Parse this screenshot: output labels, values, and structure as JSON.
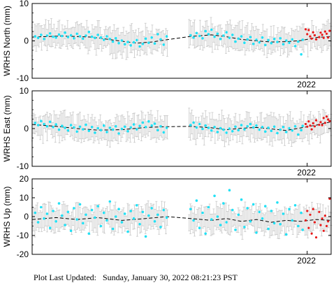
{
  "footer": {
    "label": "Plot Last Updated:",
    "value": "Sunday, January 30, 2022 08:21:23 PST"
  },
  "colors": {
    "points": "#22e1f5",
    "recent_points": "#e81b1b",
    "error_bars": "#c8c8c8",
    "trend": "#000000"
  },
  "chart_data": [
    {
      "type": "scatter",
      "ylabel": "WRHS North (mm)",
      "ylim": [
        -10,
        10
      ],
      "yticks": [
        "10",
        "0",
        "-10"
      ],
      "x_tick_label": "2022",
      "points_cyan": [
        [
          0.01,
          1.2
        ],
        [
          0.02,
          0.8
        ],
        [
          0.03,
          1.6
        ],
        [
          0.04,
          0.5
        ],
        [
          0.05,
          1.4
        ],
        [
          0.06,
          2.0
        ],
        [
          0.07,
          1.1
        ],
        [
          0.08,
          0.9
        ],
        [
          0.09,
          1.7
        ],
        [
          0.1,
          1.3
        ],
        [
          0.11,
          2.2
        ],
        [
          0.12,
          1.0
        ],
        [
          0.13,
          1.5
        ],
        [
          0.14,
          0.7
        ],
        [
          0.15,
          1.9
        ],
        [
          0.16,
          1.2
        ],
        [
          0.17,
          0.6
        ],
        [
          0.18,
          1.4
        ],
        [
          0.19,
          2.4
        ],
        [
          0.2,
          1.1
        ],
        [
          0.21,
          0.8
        ],
        [
          0.22,
          1.6
        ],
        [
          0.23,
          0.9
        ],
        [
          0.24,
          0.3
        ],
        [
          0.25,
          1.2
        ],
        [
          0.26,
          0.5
        ],
        [
          0.27,
          -0.2
        ],
        [
          0.28,
          0.7
        ],
        [
          0.29,
          -0.6
        ],
        [
          0.3,
          0.1
        ],
        [
          0.31,
          -0.9
        ],
        [
          0.32,
          -0.3
        ],
        [
          0.33,
          -1.2
        ],
        [
          0.34,
          -0.4
        ],
        [
          0.35,
          0.2
        ],
        [
          0.36,
          -1.5
        ],
        [
          0.37,
          -0.8
        ],
        [
          0.38,
          0.6
        ],
        [
          0.39,
          -0.5
        ],
        [
          0.4,
          0.9
        ],
        [
          0.41,
          -0.7
        ],
        [
          0.42,
          1.8
        ],
        [
          0.43,
          0.4
        ],
        [
          0.44,
          -1.0
        ],
        [
          0.45,
          1.2
        ],
        [
          0.53,
          1.5
        ],
        [
          0.54,
          0.9
        ],
        [
          0.55,
          2.1
        ],
        [
          0.56,
          1.3
        ],
        [
          0.57,
          0.7
        ],
        [
          0.58,
          2.6
        ],
        [
          0.59,
          1.8
        ],
        [
          0.6,
          3.0
        ],
        [
          0.61,
          1.1
        ],
        [
          0.62,
          1.9
        ],
        [
          0.63,
          0.5
        ],
        [
          0.64,
          1.4
        ],
        [
          0.65,
          2.3
        ],
        [
          0.66,
          0.8
        ],
        [
          0.67,
          1.6
        ],
        [
          0.68,
          -0.2
        ],
        [
          0.69,
          0.6
        ],
        [
          0.7,
          1.2
        ],
        [
          0.71,
          -0.5
        ],
        [
          0.72,
          0.4
        ],
        [
          0.73,
          1.0
        ],
        [
          0.74,
          -0.8
        ],
        [
          0.75,
          0.3
        ],
        [
          0.76,
          -0.4
        ],
        [
          0.77,
          0.9
        ],
        [
          0.78,
          -1.1
        ],
        [
          0.79,
          0.2
        ],
        [
          0.8,
          -0.6
        ],
        [
          0.81,
          0.5
        ],
        [
          0.82,
          -0.3
        ],
        [
          0.83,
          0.7
        ],
        [
          0.84,
          -0.9
        ],
        [
          0.85,
          0.1
        ],
        [
          0.86,
          -0.5
        ],
        [
          0.87,
          0.4
        ],
        [
          0.88,
          -1.4
        ],
        [
          0.89,
          -0.2
        ],
        [
          0.9,
          -3.6
        ],
        [
          0.905,
          0.3
        ]
      ],
      "points_red": [
        [
          0.915,
          3.1
        ],
        [
          0.92,
          1.8
        ],
        [
          0.925,
          2.9
        ],
        [
          0.93,
          1.2
        ],
        [
          0.935,
          0.6
        ],
        [
          0.94,
          2.3
        ],
        [
          0.945,
          1.5
        ],
        [
          0.95,
          0.4
        ],
        [
          0.96,
          1.0
        ],
        [
          0.965,
          2.2
        ],
        [
          0.97,
          1.6
        ],
        [
          0.975,
          0.8
        ],
        [
          0.98,
          2.5
        ],
        [
          0.985,
          1.9
        ],
        [
          0.99,
          0.9
        ],
        [
          0.995,
          2.7
        ]
      ],
      "trend": [
        [
          0.0,
          1.0
        ],
        [
          0.1,
          1.3
        ],
        [
          0.2,
          1.0
        ],
        [
          0.3,
          -0.1
        ],
        [
          0.35,
          -0.6
        ],
        [
          0.4,
          -0.3
        ],
        [
          0.45,
          0.3
        ],
        [
          0.53,
          1.2
        ],
        [
          0.6,
          1.6
        ],
        [
          0.65,
          1.1
        ],
        [
          0.7,
          0.4
        ],
        [
          0.75,
          0.0
        ],
        [
          0.8,
          -0.3
        ],
        [
          0.85,
          -0.2
        ],
        [
          0.9,
          0.1
        ],
        [
          0.95,
          0.9
        ],
        [
          1.0,
          1.2
        ]
      ]
    },
    {
      "type": "scatter",
      "ylabel": "WRHS East (mm)",
      "ylim": [
        -10,
        10
      ],
      "yticks": [
        "10",
        "0",
        "-10"
      ],
      "x_tick_label": "2022",
      "points_cyan": [
        [
          0.01,
          1.5
        ],
        [
          0.02,
          0.9
        ],
        [
          0.03,
          2.0
        ],
        [
          0.04,
          1.2
        ],
        [
          0.05,
          0.6
        ],
        [
          0.06,
          1.8
        ],
        [
          0.07,
          0.4
        ],
        [
          0.08,
          1.1
        ],
        [
          0.09,
          -0.3
        ],
        [
          0.1,
          0.7
        ],
        [
          0.11,
          0.2
        ],
        [
          0.12,
          -0.5
        ],
        [
          0.13,
          0.9
        ],
        [
          0.14,
          0.3
        ],
        [
          0.15,
          -0.8
        ],
        [
          0.16,
          0.5
        ],
        [
          0.17,
          -0.2
        ],
        [
          0.18,
          1.0
        ],
        [
          0.19,
          -0.6
        ],
        [
          0.2,
          0.4
        ],
        [
          0.21,
          -1.1
        ],
        [
          0.22,
          0.1
        ],
        [
          0.23,
          -0.4
        ],
        [
          0.24,
          0.8
        ],
        [
          0.25,
          -0.9
        ],
        [
          0.26,
          0.2
        ],
        [
          0.27,
          -0.3
        ],
        [
          0.28,
          0.6
        ],
        [
          0.29,
          -1.3
        ],
        [
          0.3,
          -0.1
        ],
        [
          0.31,
          0.5
        ],
        [
          0.32,
          -0.7
        ],
        [
          0.33,
          0.3
        ],
        [
          0.34,
          1.1
        ],
        [
          0.35,
          -0.2
        ],
        [
          0.36,
          0.7
        ],
        [
          0.37,
          1.6
        ],
        [
          0.38,
          0.4
        ],
        [
          0.39,
          1.9
        ],
        [
          0.4,
          0.8
        ],
        [
          0.41,
          1.3
        ],
        [
          0.42,
          -0.4
        ],
        [
          0.43,
          0.6
        ],
        [
          0.44,
          -1.0
        ],
        [
          0.45,
          0.2
        ],
        [
          0.53,
          0.9
        ],
        [
          0.54,
          1.6
        ],
        [
          0.55,
          0.3
        ],
        [
          0.56,
          1.2
        ],
        [
          0.57,
          -0.1
        ],
        [
          0.58,
          0.8
        ],
        [
          0.59,
          0.2
        ],
        [
          0.6,
          -0.5
        ],
        [
          0.61,
          0.4
        ],
        [
          0.62,
          -0.9
        ],
        [
          0.63,
          0.1
        ],
        [
          0.64,
          -0.3
        ],
        [
          0.65,
          -1.1
        ],
        [
          0.66,
          0.0
        ],
        [
          0.67,
          -0.7
        ],
        [
          0.68,
          0.5
        ],
        [
          0.69,
          -0.4
        ],
        [
          0.7,
          0.9
        ],
        [
          0.71,
          -0.2
        ],
        [
          0.72,
          0.6
        ],
        [
          0.73,
          1.2
        ],
        [
          0.74,
          0.3
        ],
        [
          0.75,
          0.8
        ],
        [
          0.76,
          -0.3
        ],
        [
          0.77,
          0.4
        ],
        [
          0.78,
          -0.8
        ],
        [
          0.79,
          0.2
        ],
        [
          0.8,
          -0.6
        ],
        [
          0.81,
          0.5
        ],
        [
          0.82,
          -1.2
        ],
        [
          0.83,
          -0.3
        ],
        [
          0.84,
          0.4
        ],
        [
          0.85,
          -0.9
        ],
        [
          0.86,
          0.1
        ],
        [
          0.87,
          -0.5
        ],
        [
          0.88,
          0.6
        ],
        [
          0.89,
          -1.6
        ],
        [
          0.9,
          -0.4
        ],
        [
          0.905,
          0.7
        ]
      ],
      "points_red": [
        [
          0.915,
          1.2
        ],
        [
          0.92,
          0.5
        ],
        [
          0.925,
          1.9
        ],
        [
          0.93,
          0.8
        ],
        [
          0.935,
          -0.2
        ],
        [
          0.94,
          1.4
        ],
        [
          0.945,
          0.6
        ],
        [
          0.95,
          2.2
        ],
        [
          0.96,
          1.0
        ],
        [
          0.965,
          1.7
        ],
        [
          0.97,
          0.9
        ],
        [
          0.975,
          2.8
        ],
        [
          0.98,
          1.5
        ],
        [
          0.985,
          3.2
        ],
        [
          0.99,
          2.4
        ],
        [
          0.995,
          2.0
        ]
      ],
      "trend": [
        [
          0.0,
          1.1
        ],
        [
          0.08,
          0.6
        ],
        [
          0.15,
          0.0
        ],
        [
          0.22,
          -0.4
        ],
        [
          0.3,
          -0.3
        ],
        [
          0.38,
          0.3
        ],
        [
          0.45,
          0.5
        ],
        [
          0.53,
          0.6
        ],
        [
          0.6,
          0.2
        ],
        [
          0.65,
          -0.3
        ],
        [
          0.7,
          0.1
        ],
        [
          0.75,
          0.3
        ],
        [
          0.8,
          -0.1
        ],
        [
          0.85,
          -0.5
        ],
        [
          0.9,
          0.2
        ],
        [
          0.95,
          0.9
        ],
        [
          1.0,
          1.8
        ]
      ]
    },
    {
      "type": "scatter",
      "ylabel": "WRHS Up (mm)",
      "ylim": [
        -20,
        20
      ],
      "yticks": [
        "20",
        "10",
        "0",
        "-10",
        "-20"
      ],
      "x_tick_label": "2022",
      "points_cyan": [
        [
          0.01,
          2.0
        ],
        [
          0.02,
          -3.0
        ],
        [
          0.03,
          5.0
        ],
        [
          0.04,
          -1.0
        ],
        [
          0.05,
          1.5
        ],
        [
          0.06,
          -6.0
        ],
        [
          0.07,
          3.0
        ],
        [
          0.08,
          -2.5
        ],
        [
          0.09,
          7.0
        ],
        [
          0.1,
          0.5
        ],
        [
          0.11,
          -4.5
        ],
        [
          0.12,
          2.5
        ],
        [
          0.13,
          -7.5
        ],
        [
          0.14,
          4.5
        ],
        [
          0.15,
          -1.5
        ],
        [
          0.16,
          6.5
        ],
        [
          0.17,
          -3.5
        ],
        [
          0.18,
          1.0
        ],
        [
          0.19,
          -9.0
        ],
        [
          0.2,
          3.5
        ],
        [
          0.21,
          -0.5
        ],
        [
          0.22,
          5.5
        ],
        [
          0.23,
          -5.0
        ],
        [
          0.24,
          2.0
        ],
        [
          0.25,
          -2.0
        ],
        [
          0.26,
          8.0
        ],
        [
          0.27,
          -6.5
        ],
        [
          0.28,
          0.0
        ],
        [
          0.29,
          4.0
        ],
        [
          0.3,
          -3.0
        ],
        [
          0.31,
          1.5
        ],
        [
          0.32,
          -8.0
        ],
        [
          0.33,
          3.0
        ],
        [
          0.34,
          -1.0
        ],
        [
          0.35,
          6.0
        ],
        [
          0.36,
          -4.0
        ],
        [
          0.37,
          2.5
        ],
        [
          0.38,
          -10.5
        ],
        [
          0.39,
          0.5
        ],
        [
          0.4,
          4.5
        ],
        [
          0.41,
          -2.5
        ],
        [
          0.42,
          1.0
        ],
        [
          0.43,
          -5.5
        ],
        [
          0.44,
          3.5
        ],
        [
          0.45,
          -0.5
        ],
        [
          0.53,
          4.0
        ],
        [
          0.54,
          -2.0
        ],
        [
          0.55,
          8.5
        ],
        [
          0.56,
          -6.0
        ],
        [
          0.57,
          2.0
        ],
        [
          0.58,
          -9.0
        ],
        [
          0.59,
          5.0
        ],
        [
          0.6,
          -1.5
        ],
        [
          0.61,
          11.0
        ],
        [
          0.62,
          0.0
        ],
        [
          0.63,
          -4.5
        ],
        [
          0.64,
          7.0
        ],
        [
          0.65,
          -3.0
        ],
        [
          0.66,
          14.0
        ],
        [
          0.67,
          3.5
        ],
        [
          0.68,
          -7.0
        ],
        [
          0.69,
          1.0
        ],
        [
          0.7,
          9.0
        ],
        [
          0.71,
          -5.5
        ],
        [
          0.72,
          4.5
        ],
        [
          0.73,
          -2.5
        ],
        [
          0.74,
          6.5
        ],
        [
          0.75,
          -8.5
        ],
        [
          0.76,
          2.5
        ],
        [
          0.77,
          -1.0
        ],
        [
          0.78,
          5.5
        ],
        [
          0.79,
          -6.5
        ],
        [
          0.8,
          3.0
        ],
        [
          0.81,
          -3.5
        ],
        [
          0.82,
          7.5
        ],
        [
          0.83,
          -4.0
        ],
        [
          0.84,
          1.5
        ],
        [
          0.85,
          -9.5
        ],
        [
          0.86,
          4.0
        ],
        [
          0.87,
          -2.0
        ],
        [
          0.88,
          6.0
        ],
        [
          0.89,
          -5.0
        ],
        [
          0.9,
          2.0
        ],
        [
          0.905,
          -7.0
        ]
      ],
      "points_red": [
        [
          0.915,
          -2.0
        ],
        [
          0.92,
          3.0
        ],
        [
          0.925,
          -6.0
        ],
        [
          0.93,
          1.0
        ],
        [
          0.935,
          -9.0
        ],
        [
          0.94,
          4.0
        ],
        [
          0.945,
          -3.0
        ],
        [
          0.95,
          -11.0
        ],
        [
          0.96,
          2.5
        ],
        [
          0.965,
          -4.5
        ],
        [
          0.97,
          -1.0
        ],
        [
          0.975,
          -7.5
        ],
        [
          0.98,
          0.5
        ],
        [
          0.985,
          -5.0
        ],
        [
          0.99,
          -2.5
        ],
        [
          0.995,
          9.5
        ]
      ],
      "trend": [
        [
          0.0,
          -1.5
        ],
        [
          0.08,
          -0.5
        ],
        [
          0.15,
          -1.5
        ],
        [
          0.22,
          -0.5
        ],
        [
          0.3,
          -2.0
        ],
        [
          0.38,
          -1.0
        ],
        [
          0.45,
          0.0
        ],
        [
          0.53,
          -1.0
        ],
        [
          0.6,
          -2.0
        ],
        [
          0.65,
          -1.0
        ],
        [
          0.7,
          -2.5
        ],
        [
          0.75,
          -1.5
        ],
        [
          0.8,
          -3.0
        ],
        [
          0.85,
          -2.0
        ],
        [
          0.9,
          -2.5
        ],
        [
          0.95,
          -1.5
        ],
        [
          1.0,
          -2.0
        ]
      ]
    }
  ]
}
